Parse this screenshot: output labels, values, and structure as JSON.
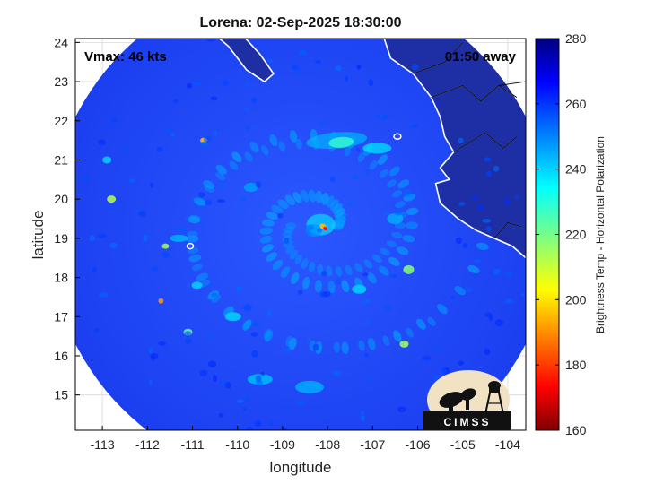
{
  "title": "Lorena: 02-Sep-2025 18:30:00",
  "annotations": {
    "vmax": "Vmax: 46 kts",
    "time_away": "01:50 away"
  },
  "axes": {
    "xlabel": "longitude",
    "ylabel": "latitude",
    "xlim": [
      -113.6,
      -103.6
    ],
    "ylim": [
      14.1,
      24.1
    ],
    "x_ticks": [
      {
        "v": -113,
        "t": "-113"
      },
      {
        "v": -112,
        "t": "-112"
      },
      {
        "v": -111,
        "t": "-111"
      },
      {
        "v": -110,
        "t": "-110"
      },
      {
        "v": -109,
        "t": "-109"
      },
      {
        "v": -108,
        "t": "-108"
      },
      {
        "v": -107,
        "t": "-107"
      },
      {
        "v": -106,
        "t": "-106"
      },
      {
        "v": -105,
        "t": "-105"
      },
      {
        "v": -104,
        "t": "-104"
      }
    ],
    "y_ticks": [
      {
        "v": 15,
        "t": "15"
      },
      {
        "v": 16,
        "t": "16"
      },
      {
        "v": 17,
        "t": "17"
      },
      {
        "v": 18,
        "t": "18"
      },
      {
        "v": 19,
        "t": "19"
      },
      {
        "v": 20,
        "t": "20"
      },
      {
        "v": 21,
        "t": "21"
      },
      {
        "v": 22,
        "t": "22"
      },
      {
        "v": 23,
        "t": "23"
      },
      {
        "v": 24,
        "t": "24"
      }
    ],
    "grid": true
  },
  "colorbar": {
    "label": "Brightness Temp - Horizontal Polarization",
    "range": [
      160,
      280
    ],
    "ticks": [
      {
        "v": 280,
        "t": "280"
      },
      {
        "v": 260,
        "t": "260"
      },
      {
        "v": 240,
        "t": "240"
      },
      {
        "v": 220,
        "t": "220"
      },
      {
        "v": 200,
        "t": "200"
      },
      {
        "v": 180,
        "t": "180"
      },
      {
        "v": 160,
        "t": "160"
      }
    ],
    "colormap": "jet"
  },
  "swath": {
    "center": [
      -108.6,
      19.2
    ],
    "radius_deg": 5.6
  },
  "storm_center": [
    -108.15,
    19.3
  ],
  "coastline_color": "#ffffff",
  "logo": {
    "text": "CIMSS",
    "background": "#f2e2c4"
  }
}
